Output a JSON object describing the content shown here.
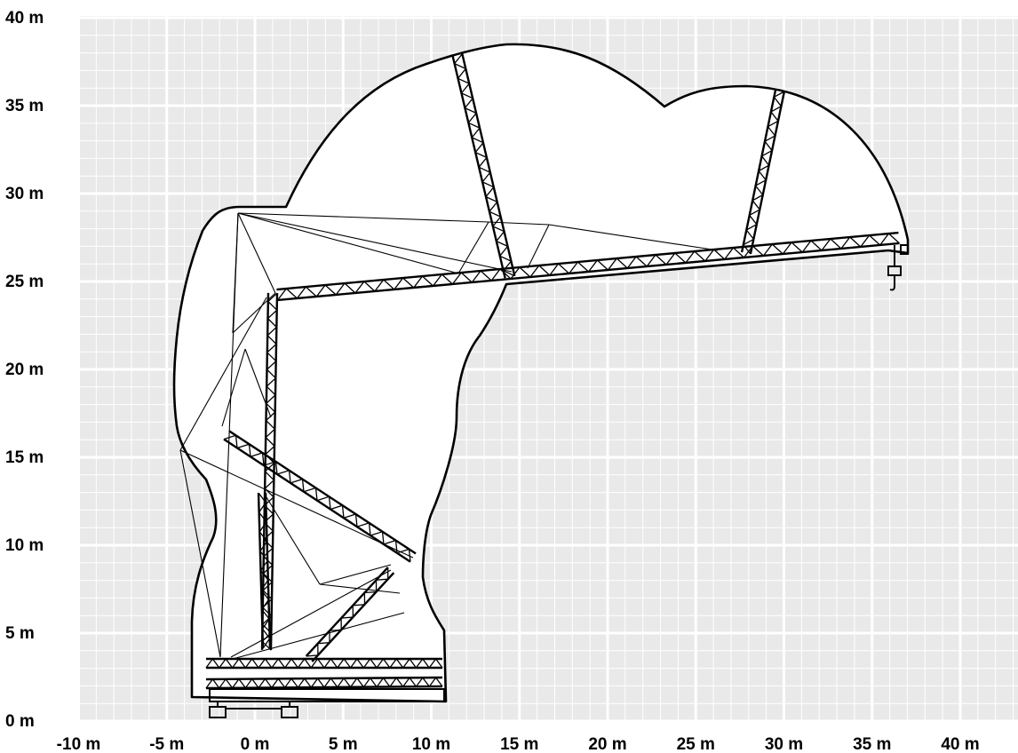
{
  "chart_data": {
    "type": "diagram",
    "x_ticks": [
      {
        "value": -10,
        "label": "-10 m"
      },
      {
        "value": -5,
        "label": "-5 m"
      },
      {
        "value": 0,
        "label": "0 m"
      },
      {
        "value": 5,
        "label": "5 m"
      },
      {
        "value": 10,
        "label": "10 m"
      },
      {
        "value": 15,
        "label": "15 m"
      },
      {
        "value": 20,
        "label": "20 m"
      },
      {
        "value": 25,
        "label": "25 m"
      },
      {
        "value": 30,
        "label": "30 m"
      },
      {
        "value": 35,
        "label": "35 m"
      },
      {
        "value": 40,
        "label": "40 m"
      }
    ],
    "y_ticks": [
      {
        "value": 0,
        "label": "0 m"
      },
      {
        "value": 5,
        "label": "5 m"
      },
      {
        "value": 10,
        "label": "10 m"
      },
      {
        "value": 15,
        "label": "15 m"
      },
      {
        "value": 20,
        "label": "20 m"
      },
      {
        "value": 25,
        "label": "25 m"
      },
      {
        "value": 30,
        "label": "30 m"
      },
      {
        "value": 35,
        "label": "35 m"
      },
      {
        "value": 40,
        "label": "40 m"
      }
    ],
    "xlim": [
      -10,
      43
    ],
    "ylim": [
      0,
      40
    ],
    "grid": true,
    "colors": {
      "grid_fill": "#e9e9e9",
      "grid_line": "#ffffff",
      "envelope": "#ffffff",
      "structure": "#000000"
    }
  }
}
